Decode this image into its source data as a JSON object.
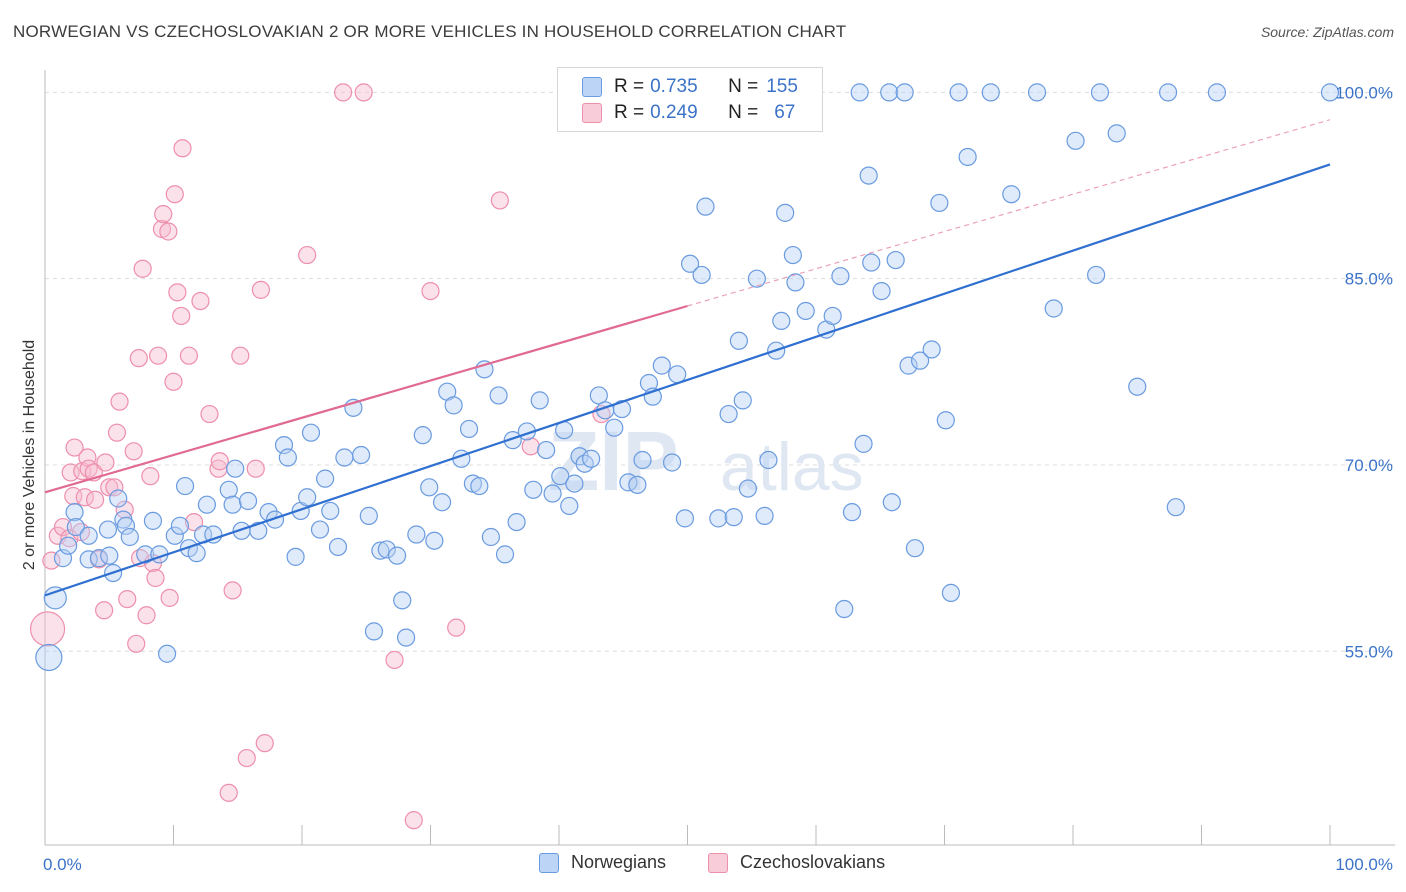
{
  "title": "NORWEGIAN VS CZECHOSLOVAKIAN 2 OR MORE VEHICLES IN HOUSEHOLD CORRELATION CHART",
  "source": "Source: ZipAtlas.com",
  "watermark": {
    "zip": "ZIP",
    "atlas": "atlas"
  },
  "legend": {
    "norwegians": {
      "r_label": "R =",
      "r_value": "0.735",
      "n_label": "N =",
      "n_value": "155",
      "color": "#a9c6f0"
    },
    "czechoslovakians": {
      "r_label": "R =",
      "r_value": "0.249",
      "n_label": "N =",
      "n_value": "67",
      "color": "#f5b8cb"
    }
  },
  "bottom_legend": {
    "norwegians": "Norwegians",
    "czechoslovakians": "Czechoslovakians"
  },
  "chart_data": {
    "type": "scatter",
    "title": "NORWEGIAN VS CZECHOSLOVAKIAN 2 OR MORE VEHICLES IN HOUSEHOLD CORRELATION CHART",
    "xlabel": "",
    "ylabel": "2 or more Vehicles in Household",
    "x_tick_labels": [
      "0.0%",
      "100.0%"
    ],
    "y_tick_labels": [
      "55.0%",
      "70.0%",
      "85.0%",
      "100.0%"
    ],
    "y_ticks": [
      55,
      70,
      85,
      100
    ],
    "xlim": [
      0,
      100
    ],
    "ylim": [
      39.4,
      101.4
    ],
    "grid": true,
    "legend_position": "top-center",
    "series": [
      {
        "name": "Norwegians",
        "color": "#6a9be0",
        "trend": {
          "x": [
            0,
            100
          ],
          "y": [
            59.5,
            94.2
          ]
        },
        "points": [
          [
            0.8,
            59.3
          ],
          [
            0.3,
            54.5
          ],
          [
            1.4,
            62.5
          ],
          [
            1.8,
            63.5
          ],
          [
            2.3,
            66.2
          ],
          [
            2.4,
            65.0
          ],
          [
            3.4,
            64.3
          ],
          [
            3.4,
            62.4
          ],
          [
            4.2,
            62.5
          ],
          [
            4.9,
            64.8
          ],
          [
            5.0,
            62.7
          ],
          [
            5.3,
            61.3
          ],
          [
            5.7,
            67.3
          ],
          [
            6.1,
            65.6
          ],
          [
            6.3,
            65.1
          ],
          [
            6.6,
            64.2
          ],
          [
            7.8,
            62.8
          ],
          [
            8.4,
            65.5
          ],
          [
            8.9,
            62.8
          ],
          [
            9.5,
            54.8
          ],
          [
            10.1,
            64.3
          ],
          [
            10.5,
            65.1
          ],
          [
            10.9,
            68.3
          ],
          [
            11.2,
            63.3
          ],
          [
            11.8,
            62.9
          ],
          [
            12.3,
            64.4
          ],
          [
            12.6,
            66.8
          ],
          [
            13.1,
            64.4
          ],
          [
            14.3,
            68.0
          ],
          [
            14.6,
            66.8
          ],
          [
            14.8,
            69.7
          ],
          [
            15.3,
            64.7
          ],
          [
            15.8,
            67.1
          ],
          [
            16.6,
            64.7
          ],
          [
            17.4,
            66.2
          ],
          [
            17.9,
            65.6
          ],
          [
            18.6,
            71.6
          ],
          [
            18.9,
            70.6
          ],
          [
            19.5,
            62.6
          ],
          [
            19.9,
            66.3
          ],
          [
            20.4,
            67.4
          ],
          [
            20.7,
            72.6
          ],
          [
            21.4,
            64.8
          ],
          [
            21.8,
            68.9
          ],
          [
            22.2,
            66.3
          ],
          [
            22.8,
            63.4
          ],
          [
            23.3,
            70.6
          ],
          [
            24.0,
            74.6
          ],
          [
            24.6,
            70.8
          ],
          [
            25.2,
            65.9
          ],
          [
            25.6,
            56.6
          ],
          [
            26.1,
            63.1
          ],
          [
            26.6,
            63.2
          ],
          [
            27.4,
            62.7
          ],
          [
            27.8,
            59.1
          ],
          [
            28.1,
            56.1
          ],
          [
            28.9,
            64.4
          ],
          [
            29.4,
            72.4
          ],
          [
            29.9,
            68.2
          ],
          [
            30.3,
            63.9
          ],
          [
            30.9,
            67.0
          ],
          [
            31.3,
            75.9
          ],
          [
            31.8,
            74.8
          ],
          [
            32.4,
            70.5
          ],
          [
            33.0,
            72.9
          ],
          [
            33.3,
            68.5
          ],
          [
            33.8,
            68.3
          ],
          [
            34.2,
            77.7
          ],
          [
            34.7,
            64.2
          ],
          [
            35.3,
            75.6
          ],
          [
            35.8,
            62.8
          ],
          [
            36.4,
            72.0
          ],
          [
            36.7,
            65.4
          ],
          [
            37.5,
            72.7
          ],
          [
            38.0,
            68.0
          ],
          [
            38.5,
            75.2
          ],
          [
            39.0,
            71.2
          ],
          [
            39.5,
            67.7
          ],
          [
            40.1,
            69.1
          ],
          [
            40.4,
            72.8
          ],
          [
            40.8,
            66.7
          ],
          [
            41.2,
            68.5
          ],
          [
            41.6,
            70.7
          ],
          [
            42.0,
            70.1
          ],
          [
            42.5,
            70.5
          ],
          [
            43.1,
            75.6
          ],
          [
            43.6,
            74.4
          ],
          [
            44.3,
            73.0
          ],
          [
            44.9,
            74.5
          ],
          [
            45.4,
            68.6
          ],
          [
            46.1,
            68.4
          ],
          [
            46.5,
            70.4
          ],
          [
            47.0,
            76.6
          ],
          [
            47.3,
            75.5
          ],
          [
            48.0,
            78.0
          ],
          [
            48.8,
            70.2
          ],
          [
            49.2,
            77.3
          ],
          [
            49.8,
            65.7
          ],
          [
            50.2,
            86.2
          ],
          [
            51.1,
            85.3
          ],
          [
            51.4,
            90.8
          ],
          [
            52.4,
            65.7
          ],
          [
            53.2,
            74.1
          ],
          [
            53.6,
            65.8
          ],
          [
            54.0,
            80.0
          ],
          [
            54.3,
            75.2
          ],
          [
            54.7,
            68.1
          ],
          [
            55.4,
            85.0
          ],
          [
            56.0,
            65.9
          ],
          [
            56.3,
            70.4
          ],
          [
            56.9,
            79.2
          ],
          [
            57.3,
            81.6
          ],
          [
            57.6,
            90.3
          ],
          [
            58.2,
            86.9
          ],
          [
            58.4,
            84.7
          ],
          [
            59.2,
            82.4
          ],
          [
            60.8,
            80.9
          ],
          [
            61.3,
            82.0
          ],
          [
            61.9,
            85.2
          ],
          [
            62.2,
            58.4
          ],
          [
            62.8,
            66.2
          ],
          [
            63.4,
            100.0
          ],
          [
            63.7,
            71.7
          ],
          [
            64.1,
            93.3
          ],
          [
            64.3,
            86.3
          ],
          [
            65.1,
            84.0
          ],
          [
            65.7,
            100.0
          ],
          [
            65.9,
            67.0
          ],
          [
            66.2,
            86.5
          ],
          [
            66.9,
            100.0
          ],
          [
            67.2,
            78.0
          ],
          [
            67.7,
            63.3
          ],
          [
            68.1,
            78.4
          ],
          [
            69.0,
            79.3
          ],
          [
            69.6,
            91.1
          ],
          [
            70.1,
            73.6
          ],
          [
            70.5,
            59.7
          ],
          [
            71.1,
            100.0
          ],
          [
            71.8,
            94.8
          ],
          [
            73.6,
            100.0
          ],
          [
            75.2,
            91.8
          ],
          [
            77.2,
            100.0
          ],
          [
            78.5,
            82.6
          ],
          [
            80.2,
            96.1
          ],
          [
            81.8,
            85.3
          ],
          [
            82.1,
            100.0
          ],
          [
            83.4,
            96.7
          ],
          [
            85.0,
            76.3
          ],
          [
            87.4,
            100.0
          ],
          [
            88.0,
            66.6
          ],
          [
            91.2,
            100.0
          ],
          [
            100.0,
            100.0
          ]
        ]
      },
      {
        "name": "Czechoslovakians",
        "color": "#ee8fac",
        "trend": {
          "x": [
            0,
            50
          ],
          "y": [
            67.8,
            82.8
          ]
        },
        "trend_dashed": {
          "x": [
            50,
            100
          ],
          "y": [
            82.8,
            97.8
          ]
        },
        "points": [
          [
            0.2,
            56.8
          ],
          [
            0.5,
            62.3
          ],
          [
            1.0,
            64.3
          ],
          [
            1.4,
            65.0
          ],
          [
            1.9,
            64.1
          ],
          [
            2.0,
            69.4
          ],
          [
            2.2,
            67.5
          ],
          [
            2.3,
            71.4
          ],
          [
            2.8,
            64.6
          ],
          [
            2.9,
            69.5
          ],
          [
            3.1,
            67.4
          ],
          [
            3.3,
            70.6
          ],
          [
            3.4,
            69.7
          ],
          [
            3.8,
            69.4
          ],
          [
            3.9,
            67.2
          ],
          [
            4.2,
            62.4
          ],
          [
            4.6,
            58.3
          ],
          [
            4.7,
            70.2
          ],
          [
            5.0,
            68.2
          ],
          [
            5.4,
            68.2
          ],
          [
            5.6,
            72.6
          ],
          [
            5.8,
            75.1
          ],
          [
            6.2,
            66.4
          ],
          [
            6.4,
            59.2
          ],
          [
            6.9,
            71.1
          ],
          [
            7.1,
            55.6
          ],
          [
            7.3,
            78.6
          ],
          [
            7.4,
            62.5
          ],
          [
            7.6,
            85.8
          ],
          [
            7.9,
            57.9
          ],
          [
            8.2,
            69.1
          ],
          [
            8.4,
            62.1
          ],
          [
            8.6,
            60.9
          ],
          [
            8.8,
            78.8
          ],
          [
            9.1,
            89.0
          ],
          [
            9.2,
            90.2
          ],
          [
            9.6,
            88.8
          ],
          [
            9.7,
            59.3
          ],
          [
            10.0,
            76.7
          ],
          [
            10.1,
            91.8
          ],
          [
            10.3,
            83.9
          ],
          [
            10.6,
            82.0
          ],
          [
            10.7,
            95.5
          ],
          [
            11.2,
            78.8
          ],
          [
            11.6,
            65.4
          ],
          [
            12.1,
            83.2
          ],
          [
            12.8,
            74.1
          ],
          [
            13.5,
            69.7
          ],
          [
            13.6,
            70.3
          ],
          [
            14.3,
            43.6
          ],
          [
            14.6,
            59.9
          ],
          [
            15.2,
            78.8
          ],
          [
            15.7,
            46.4
          ],
          [
            16.4,
            69.7
          ],
          [
            16.8,
            84.1
          ],
          [
            17.1,
            47.6
          ],
          [
            20.4,
            86.9
          ],
          [
            23.2,
            100.0
          ],
          [
            24.8,
            100.0
          ],
          [
            27.2,
            54.3
          ],
          [
            28.7,
            41.4
          ],
          [
            30.0,
            84.0
          ],
          [
            32.0,
            56.9
          ],
          [
            35.4,
            91.3
          ],
          [
            37.8,
            71.5
          ],
          [
            43.3,
            74.1
          ]
        ]
      }
    ]
  }
}
